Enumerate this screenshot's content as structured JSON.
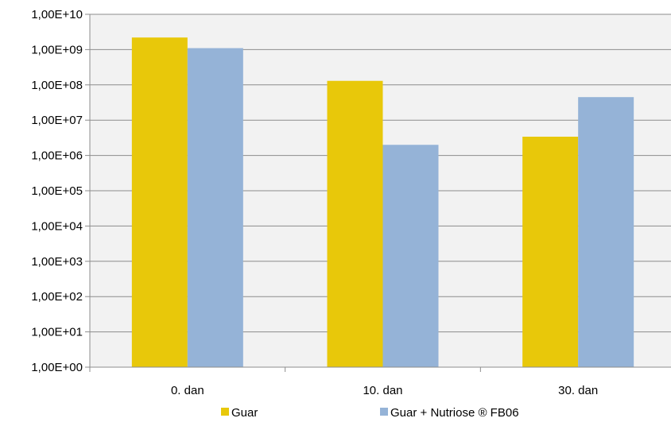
{
  "chart_data": {
    "type": "bar",
    "scale": "log",
    "categories": [
      "0. dan",
      "10. dan",
      "30. dan"
    ],
    "series": [
      {
        "name": "Guar",
        "color": "#E8C80A",
        "values": [
          2200000000.0,
          130000000.0,
          3400000.0
        ]
      },
      {
        "name": "Guar + Nutriose ® FB06",
        "color": "#95B3D7",
        "values": [
          1100000000.0,
          2000000.0,
          45000000.0
        ]
      }
    ],
    "y_ticks": [
      "1,00E+00",
      "1,00E+01",
      "1,00E+02",
      "1,00E+03",
      "1,00E+04",
      "1,00E+05",
      "1,00E+06",
      "1,00E+07",
      "1,00E+08",
      "1,00E+09",
      "1,00E+10"
    ],
    "ylim": [
      1,
      10000000000
    ],
    "grid": true,
    "plot_background": "#F2F2F2",
    "legend_position": "bottom"
  }
}
